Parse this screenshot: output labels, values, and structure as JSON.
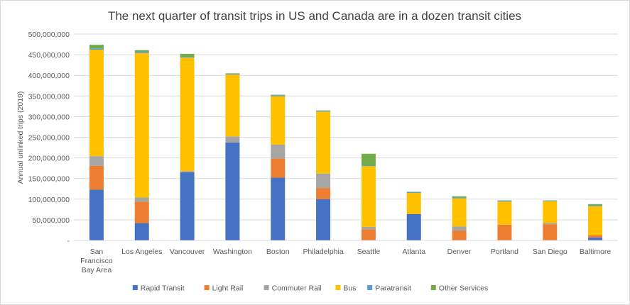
{
  "chart_data": {
    "type": "bar",
    "stacked": true,
    "title": "The next quarter of transit trips in US and Canada are in a dozen transit cities",
    "xlabel": "",
    "ylabel": "Annual unlinked trips (2019)",
    "ylim": [
      0,
      500000000
    ],
    "yticks": [
      "-",
      "50,000,000",
      "100,000,000",
      "150,000,000",
      "200,000,000",
      "250,000,000",
      "300,000,000",
      "350,000,000",
      "400,000,000",
      "450,000,000",
      "500,000,000"
    ],
    "grid": true,
    "legend_position": "bottom",
    "categories": [
      [
        "San",
        "Francisco",
        "Bay Area"
      ],
      [
        "Los Angeles"
      ],
      [
        "Vancouver"
      ],
      [
        "Washington"
      ],
      [
        "Boston"
      ],
      [
        "Philadelphia"
      ],
      [
        "Seattle"
      ],
      [
        "Atlanta"
      ],
      [
        "Denver"
      ],
      [
        "Portland"
      ],
      [
        "San Diego"
      ],
      [
        "Baltimore"
      ]
    ],
    "series": [
      {
        "name": "Rapid Transit",
        "color": "#4472c4",
        "values": [
          123000000,
          42000000,
          165000000,
          237000000,
          152000000,
          100000000,
          0,
          64000000,
          0,
          0,
          0,
          7000000
        ]
      },
      {
        "name": "Light Rail",
        "color": "#ed7d31",
        "values": [
          58000000,
          52000000,
          0,
          0,
          47000000,
          27000000,
          27000000,
          0,
          24000000,
          38000000,
          39000000,
          6000000
        ]
      },
      {
        "name": "Commuter Rail",
        "color": "#a5a5a5",
        "values": [
          23000000,
          10000000,
          3000000,
          15000000,
          33000000,
          35000000,
          6000000,
          0,
          10000000,
          0,
          3000000,
          0
        ]
      },
      {
        "name": "Bus",
        "color": "#ffc000",
        "values": [
          258000000,
          350000000,
          275000000,
          150000000,
          117000000,
          150000000,
          147000000,
          51000000,
          68000000,
          56000000,
          53000000,
          70000000
        ]
      },
      {
        "name": "Paratransit",
        "color": "#5b9bd5",
        "values": [
          3000000,
          3000000,
          2000000,
          2000000,
          2000000,
          2000000,
          2000000,
          2000000,
          2000000,
          2000000,
          1000000,
          2000000
        ]
      },
      {
        "name": "Other Services",
        "color": "#70ad47",
        "values": [
          9000000,
          4000000,
          7000000,
          1000000,
          2000000,
          1000000,
          28000000,
          1000000,
          3000000,
          1000000,
          1000000,
          3000000
        ]
      }
    ]
  }
}
